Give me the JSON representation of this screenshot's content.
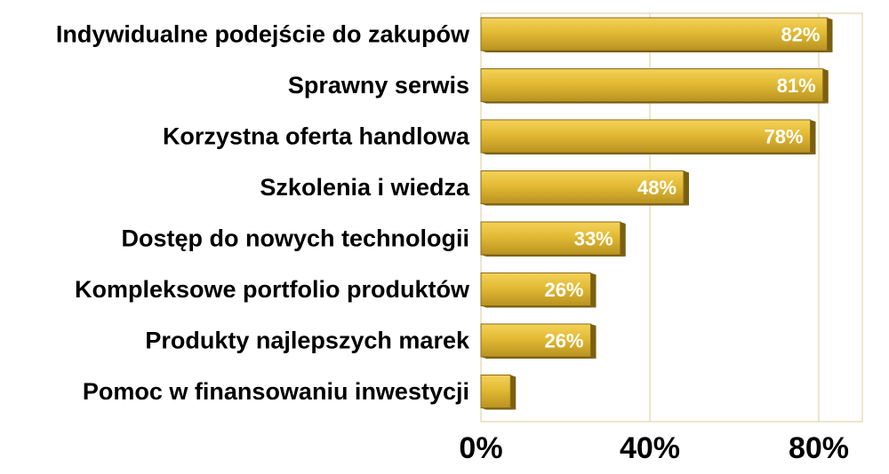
{
  "chart_data": {
    "type": "bar",
    "orientation": "horizontal",
    "categories": [
      "Indywidualne podejście do zakupów",
      "Sprawny serwis",
      "Korzystna oferta handlowa",
      "Szkolenia i wiedza",
      "Dostęp do nowych technologii",
      "Kompleksowe portfolio produktów",
      "Produkty najlepszych marek",
      "Pomoc w finansowaniu inwestycji"
    ],
    "values": [
      82,
      81,
      78,
      48,
      33,
      26,
      26,
      7
    ],
    "value_labels": [
      "82%",
      "81%",
      "78%",
      "48%",
      "33%",
      "26%",
      "26%",
      ""
    ],
    "xlim": [
      0,
      90
    ],
    "xticks": [
      0,
      40,
      80
    ],
    "xtick_labels": [
      "0%",
      "40%",
      "80%"
    ],
    "grid": true,
    "legend": "none",
    "title": "",
    "xlabel": "",
    "ylabel": "",
    "colors": {
      "bar_top": "#f4d259",
      "bar_mid": "#e2ba34",
      "bar_bottom": "#b99222",
      "bar_side": "#7a5f12",
      "bar_outline": "#8a6a14",
      "plot_border": "#d8cf9a",
      "gridline": "#d8cf9a"
    }
  }
}
